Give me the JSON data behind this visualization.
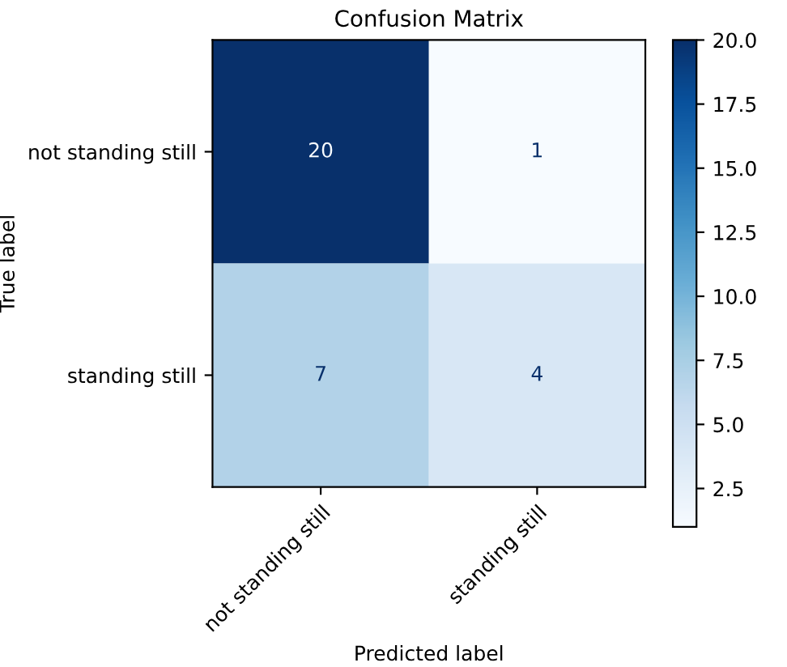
{
  "chart_data": {
    "type": "heatmap",
    "title": "Confusion Matrix",
    "xlabel": "Predicted label",
    "ylabel": "True label",
    "categories": [
      "not standing still",
      "standing still"
    ],
    "y_categories": [
      "not standing still",
      "standing still"
    ],
    "cells": [
      [
        20,
        1
      ],
      [
        7,
        4
      ]
    ],
    "data_labels": true,
    "clim": [
      1,
      20
    ],
    "cticks": [
      {
        "value": 2.5,
        "label": "2.5"
      },
      {
        "value": 5.0,
        "label": "5.0"
      },
      {
        "value": 7.5,
        "label": "7.5"
      },
      {
        "value": 10.0,
        "label": "10.0"
      },
      {
        "value": 12.5,
        "label": "12.5"
      },
      {
        "value": 15.0,
        "label": "15.0"
      },
      {
        "value": 17.5,
        "label": "17.5"
      },
      {
        "value": 20.0,
        "label": "20.0"
      }
    ]
  }
}
